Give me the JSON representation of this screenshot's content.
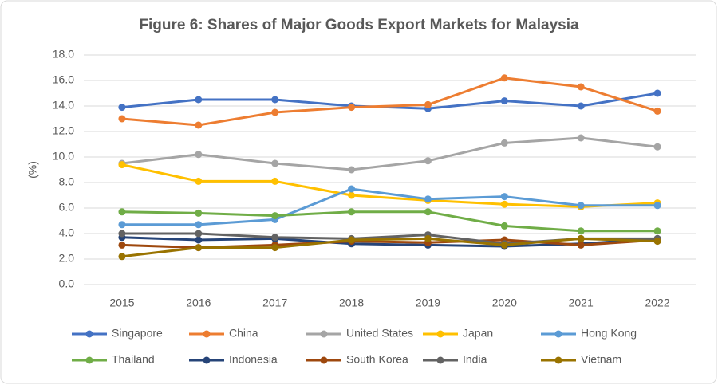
{
  "chart_data": {
    "type": "line",
    "title": "Figure 6: Shares of Major Goods Export Markets for Malaysia",
    "y_label": "(%)",
    "categories": [
      "2015",
      "2016",
      "2017",
      "2018",
      "2019",
      "2020",
      "2021",
      "2022"
    ],
    "series": [
      {
        "name": "Singapore",
        "color": "#4472c4",
        "values": [
          13.9,
          14.5,
          14.5,
          14.0,
          13.8,
          14.4,
          14.0,
          15.0
        ]
      },
      {
        "name": "China",
        "color": "#ed7d31",
        "values": [
          13.0,
          12.5,
          13.5,
          13.9,
          14.1,
          16.2,
          15.5,
          13.6
        ]
      },
      {
        "name": "United States",
        "color": "#a5a5a5",
        "values": [
          9.5,
          10.2,
          9.5,
          9.0,
          9.7,
          11.1,
          11.5,
          10.8
        ]
      },
      {
        "name": "Japan",
        "color": "#ffc000",
        "values": [
          9.4,
          8.1,
          8.1,
          7.0,
          6.6,
          6.3,
          6.1,
          6.4
        ]
      },
      {
        "name": "Hong Kong",
        "color": "#5b9bd5",
        "values": [
          4.7,
          4.7,
          5.1,
          7.5,
          6.7,
          6.9,
          6.2,
          6.2
        ]
      },
      {
        "name": "Thailand",
        "color": "#70ad47",
        "values": [
          5.7,
          5.6,
          5.4,
          5.7,
          5.7,
          4.6,
          4.2,
          4.2
        ]
      },
      {
        "name": "Indonesia",
        "color": "#264478",
        "values": [
          3.7,
          3.5,
          3.6,
          3.2,
          3.1,
          3.0,
          3.2,
          3.6
        ]
      },
      {
        "name": "South Korea",
        "color": "#9e480e",
        "values": [
          3.1,
          2.9,
          3.1,
          3.4,
          3.3,
          3.5,
          3.1,
          3.5
        ]
      },
      {
        "name": "India",
        "color": "#636363",
        "values": [
          4.0,
          4.0,
          3.7,
          3.6,
          3.9,
          3.2,
          3.6,
          3.6
        ]
      },
      {
        "name": "Vietnam",
        "color": "#997300",
        "values": [
          2.2,
          2.9,
          2.9,
          3.5,
          3.6,
          3.1,
          3.6,
          3.4
        ]
      }
    ],
    "ylim": [
      0,
      18
    ],
    "yticks": [
      {
        "value": 0,
        "label": "0.0"
      },
      {
        "value": 2,
        "label": "2.0"
      },
      {
        "value": 4,
        "label": "4.0"
      },
      {
        "value": 6,
        "label": "6.0"
      },
      {
        "value": 8,
        "label": "8.0"
      },
      {
        "value": 10,
        "label": "10.0"
      },
      {
        "value": 12,
        "label": "12.0"
      },
      {
        "value": 14,
        "label": "14.0"
      },
      {
        "value": 16,
        "label": "16.0"
      },
      {
        "value": 18,
        "label": "18.0"
      }
    ],
    "grid": true,
    "legend": "bottom"
  }
}
